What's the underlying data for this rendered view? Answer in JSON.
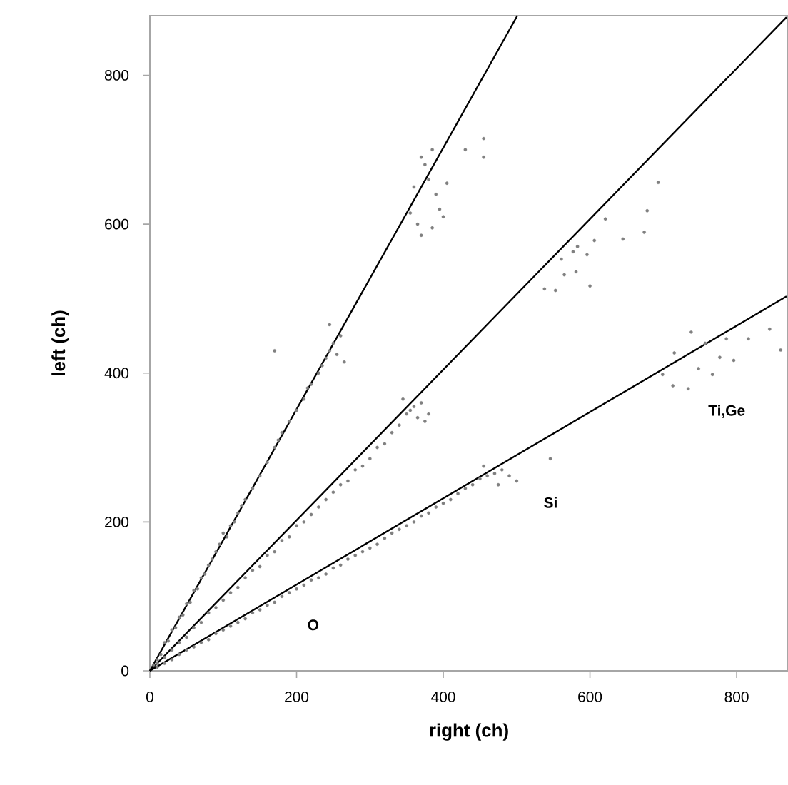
{
  "chart_data": {
    "type": "scatter",
    "xlabel": "right (ch)",
    "ylabel": "left (ch)",
    "xlim": [
      0,
      870
    ],
    "ylim": [
      0,
      880
    ],
    "xticks": [
      0,
      200,
      400,
      600,
      800
    ],
    "yticks": [
      0,
      200,
      400,
      600,
      800
    ],
    "marker": "circle",
    "series": [
      {
        "color": "#808080",
        "x": [
          5,
          10,
          15,
          20,
          25,
          30,
          35,
          40,
          45,
          50,
          55,
          60,
          65,
          70,
          75,
          80,
          85,
          90,
          95,
          100,
          105,
          110,
          115,
          120,
          125,
          130,
          140,
          150,
          160,
          170,
          175,
          180,
          190,
          200,
          210,
          215,
          220,
          230,
          235,
          240,
          245,
          250,
          255,
          260,
          245,
          265,
          170,
          355,
          360,
          365,
          370,
          375,
          380,
          385,
          390,
          395,
          400,
          405,
          370,
          385,
          455,
          455,
          430
        ],
        "values": [
          8,
          15,
          22,
          38,
          40,
          55,
          58,
          72,
          75,
          90,
          92,
          108,
          110,
          125,
          130,
          142,
          150,
          160,
          170,
          185,
          180,
          195,
          200,
          212,
          222,
          230,
          245,
          262,
          280,
          300,
          310,
          320,
          335,
          350,
          365,
          380,
          385,
          400,
          410,
          420,
          430,
          440,
          425,
          450,
          465,
          415,
          430,
          615,
          650,
          600,
          690,
          680,
          660,
          700,
          640,
          620,
          610,
          655,
          585,
          595,
          715,
          690,
          700
        ]
      },
      {
        "color": "#808080",
        "x": [
          10,
          20,
          30,
          40,
          50,
          60,
          70,
          80,
          90,
          100,
          110,
          120,
          130,
          140,
          150,
          160,
          170,
          180,
          190,
          200,
          210,
          220,
          230,
          240,
          250,
          260,
          270,
          280,
          290,
          300,
          310,
          320,
          330,
          340,
          350,
          355,
          360,
          365,
          370,
          375,
          345,
          380,
          538,
          553,
          565,
          581,
          600,
          606,
          621,
          645,
          674,
          678,
          693,
          577,
          561,
          583,
          596
        ],
        "values": [
          10,
          18,
          28,
          38,
          45,
          58,
          65,
          78,
          85,
          95,
          105,
          112,
          125,
          135,
          140,
          155,
          160,
          175,
          180,
          195,
          200,
          210,
          220,
          230,
          240,
          250,
          255,
          270,
          275,
          285,
          300,
          305,
          320,
          330,
          345,
          350,
          355,
          340,
          360,
          335,
          365,
          345,
          513,
          511,
          532,
          536,
          517,
          578,
          607,
          580,
          589,
          618,
          656,
          563,
          553,
          570,
          559
        ]
      },
      {
        "color": "#808080",
        "x": [
          10,
          20,
          30,
          40,
          50,
          60,
          70,
          80,
          90,
          100,
          110,
          120,
          130,
          140,
          150,
          160,
          170,
          180,
          190,
          200,
          210,
          220,
          230,
          240,
          250,
          260,
          270,
          280,
          290,
          300,
          310,
          320,
          330,
          340,
          350,
          360,
          370,
          380,
          390,
          400,
          410,
          420,
          430,
          440,
          450,
          460,
          470,
          480,
          490,
          500,
          455,
          475,
          546,
          715,
          738,
          757,
          777,
          796,
          786,
          816,
          845,
          860,
          699,
          713,
          734,
          748,
          767
        ],
        "values": [
          5,
          10,
          15,
          22,
          28,
          32,
          38,
          42,
          50,
          55,
          60,
          65,
          70,
          78,
          82,
          88,
          92,
          100,
          105,
          110,
          115,
          122,
          125,
          130,
          138,
          142,
          150,
          155,
          160,
          165,
          170,
          178,
          185,
          190,
          195,
          200,
          208,
          212,
          220,
          225,
          230,
          238,
          245,
          250,
          258,
          262,
          265,
          270,
          262,
          255,
          275,
          250,
          285,
          427,
          455,
          440,
          421,
          417,
          446,
          446,
          459,
          431,
          398,
          383,
          379,
          406,
          398
        ]
      },
      {
        "type": "line",
        "color": "#000000",
        "marker": "none",
        "x": [
          0,
          501
        ],
        "values": [
          0,
          880
        ]
      },
      {
        "type": "line",
        "color": "#000000",
        "marker": "none",
        "x": [
          0,
          868
        ],
        "values": [
          0,
          878
        ]
      },
      {
        "type": "line",
        "color": "#000000",
        "marker": "none",
        "x": [
          0,
          868
        ],
        "values": [
          0,
          503
        ]
      }
    ],
    "annotations": [
      "O",
      "Si",
      "Ti,Ge"
    ]
  }
}
